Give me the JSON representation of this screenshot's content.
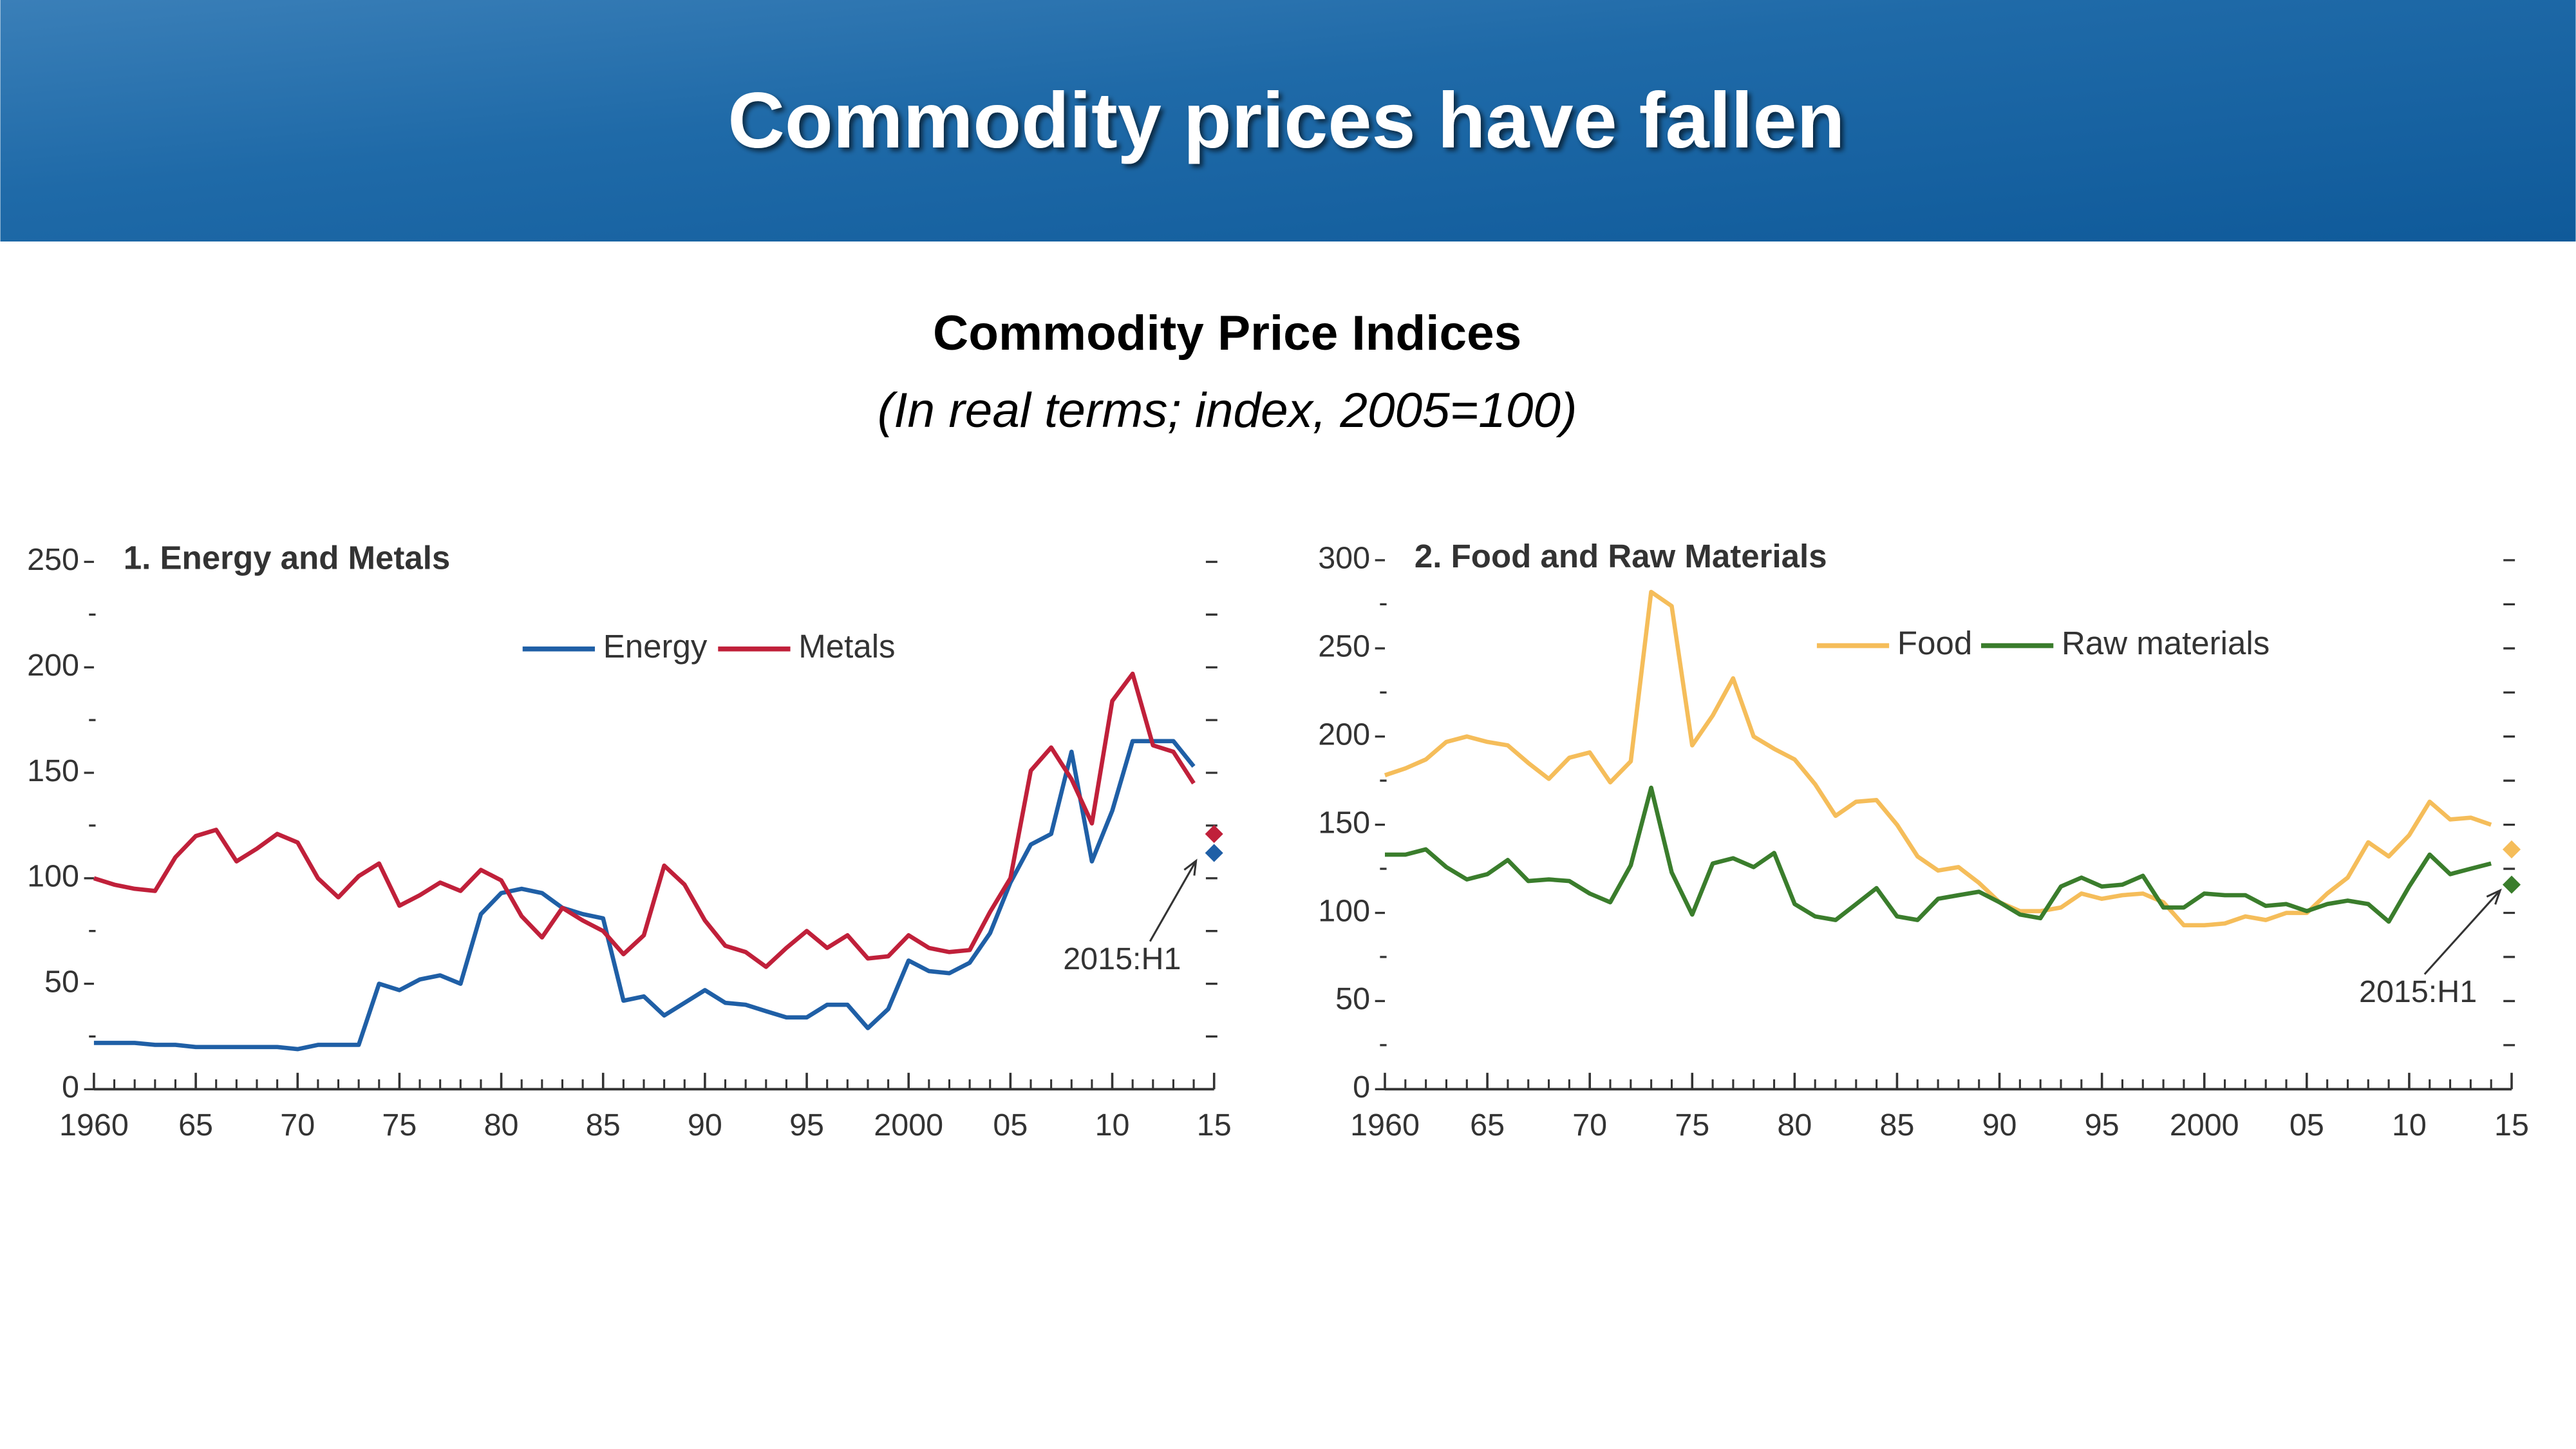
{
  "header": {
    "title": "Commodity prices have fallen"
  },
  "title": "Commodity Price Indices",
  "subtitle": "(In real terms; index, 2005=100)",
  "chart_data": [
    {
      "type": "line",
      "title": "1. Energy and Metals",
      "annotation": "2015:H1",
      "x": [
        1960,
        1961,
        1962,
        1963,
        1964,
        1965,
        1966,
        1967,
        1968,
        1969,
        1970,
        1971,
        1972,
        1973,
        1974,
        1975,
        1976,
        1977,
        1978,
        1979,
        1980,
        1981,
        1982,
        1983,
        1984,
        1985,
        1986,
        1987,
        1988,
        1989,
        1990,
        1991,
        1992,
        1993,
        1994,
        1995,
        1996,
        1997,
        1998,
        1999,
        2000,
        2001,
        2002,
        2003,
        2004,
        2005,
        2006,
        2007,
        2008,
        2009,
        2010,
        2011,
        2012,
        2013,
        2014
      ],
      "series": [
        {
          "name": "Energy",
          "color": "#1f5fa6",
          "values": [
            22,
            22,
            22,
            21,
            21,
            20,
            20,
            20,
            20,
            20,
            19,
            21,
            21,
            21,
            50,
            47,
            52,
            54,
            50,
            83,
            93,
            95,
            93,
            86,
            83,
            81,
            42,
            44,
            35,
            41,
            47,
            41,
            40,
            37,
            34,
            34,
            40,
            40,
            29,
            38,
            61,
            56,
            55,
            60,
            74,
            98,
            116,
            121,
            160,
            108,
            132,
            165,
            165,
            165,
            153
          ],
          "h1_value": 112
        },
        {
          "name": "Metals",
          "color": "#c0203a",
          "values": [
            100,
            97,
            95,
            94,
            110,
            120,
            123,
            108,
            114,
            121,
            117,
            100,
            91,
            101,
            107,
            87,
            92,
            98,
            94,
            104,
            99,
            82,
            72,
            86,
            80,
            75,
            64,
            73,
            106,
            97,
            80,
            68,
            65,
            58,
            67,
            75,
            67,
            73,
            62,
            63,
            73,
            67,
            65,
            66,
            84,
            100,
            151,
            162,
            147,
            126,
            184,
            197,
            163,
            160,
            145
          ],
          "h1_value": 121
        }
      ],
      "xlim": [
        1960,
        2015
      ],
      "xticks": [
        1960,
        {
          "value": 1965,
          "label": "65"
        },
        {
          "value": 1970,
          "label": "70"
        },
        {
          "value": 1975,
          "label": "75"
        },
        {
          "value": 1980,
          "label": "80"
        },
        {
          "value": 1985,
          "label": "85"
        },
        {
          "value": 1990,
          "label": "90"
        },
        {
          "value": 1995,
          "label": "95"
        },
        2000,
        {
          "value": 2005,
          "label": "05"
        },
        {
          "value": 2010,
          "label": "10"
        },
        {
          "value": 2015,
          "label": "15"
        }
      ],
      "ylim": [
        0,
        250
      ],
      "yticks": [
        0,
        50,
        100,
        150,
        200,
        250
      ]
    },
    {
      "type": "line",
      "title": "2. Food and Raw Materials",
      "annotation": "2015:H1",
      "x": [
        1960,
        1961,
        1962,
        1963,
        1964,
        1965,
        1966,
        1967,
        1968,
        1969,
        1970,
        1971,
        1972,
        1973,
        1974,
        1975,
        1976,
        1977,
        1978,
        1979,
        1980,
        1981,
        1982,
        1983,
        1984,
        1985,
        1986,
        1987,
        1988,
        1989,
        1990,
        1991,
        1992,
        1993,
        1994,
        1995,
        1996,
        1997,
        1998,
        1999,
        2000,
        2001,
        2002,
        2003,
        2004,
        2005,
        2006,
        2007,
        2008,
        2009,
        2010,
        2011,
        2012,
        2013,
        2014
      ],
      "series": [
        {
          "name": "Food",
          "color": "#f5bd5a",
          "values": [
            178,
            182,
            187,
            197,
            200,
            197,
            195,
            185,
            176,
            188,
            191,
            174,
            186,
            282,
            274,
            195,
            212,
            233,
            200,
            193,
            187,
            173,
            155,
            163,
            164,
            150,
            132,
            124,
            126,
            117,
            106,
            101,
            101,
            103,
            111,
            108,
            110,
            111,
            106,
            93,
            93,
            94,
            98,
            96,
            100,
            100,
            111,
            120,
            140,
            132,
            144,
            163,
            153,
            154,
            150
          ],
          "h1_value": 136
        },
        {
          "name": "Raw materials",
          "color": "#3a7d2c",
          "values": [
            133,
            133,
            136,
            126,
            119,
            122,
            130,
            118,
            119,
            118,
            111,
            106,
            127,
            171,
            123,
            99,
            128,
            131,
            126,
            134,
            105,
            98,
            96,
            105,
            114,
            98,
            96,
            108,
            110,
            112,
            106,
            99,
            97,
            115,
            120,
            115,
            116,
            121,
            103,
            103,
            111,
            110,
            110,
            104,
            105,
            101,
            105,
            107,
            105,
            95,
            115,
            133,
            122,
            125,
            128
          ],
          "h1_value": 116
        }
      ],
      "xlim": [
        1960,
        2015
      ],
      "xticks": [
        1960,
        {
          "value": 1965,
          "label": "65"
        },
        {
          "value": 1970,
          "label": "70"
        },
        {
          "value": 1975,
          "label": "75"
        },
        {
          "value": 1980,
          "label": "80"
        },
        {
          "value": 1985,
          "label": "85"
        },
        {
          "value": 1990,
          "label": "90"
        },
        {
          "value": 1995,
          "label": "95"
        },
        2000,
        {
          "value": 2005,
          "label": "05"
        },
        {
          "value": 2010,
          "label": "10"
        },
        {
          "value": 2015,
          "label": "15"
        }
      ],
      "ylim": [
        0,
        300
      ],
      "yticks": [
        0,
        50,
        100,
        150,
        200,
        250,
        300
      ]
    }
  ]
}
